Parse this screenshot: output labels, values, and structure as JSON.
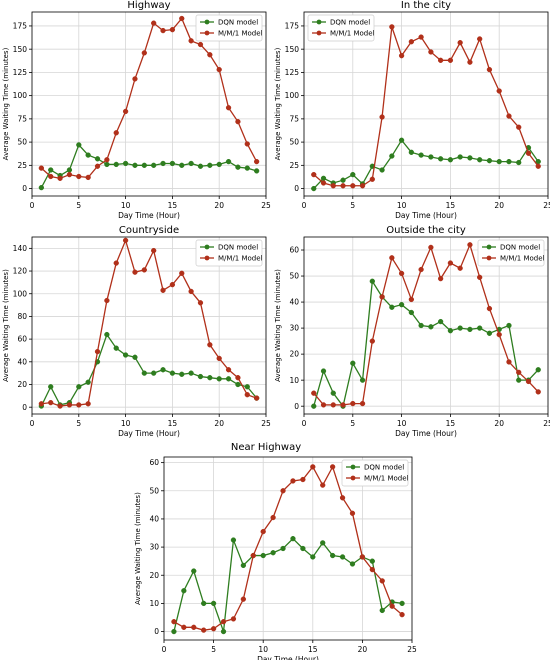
{
  "colors": {
    "dqn": "#2e7d1f",
    "mm1": "#b1301a",
    "grid": "#d6d6d6",
    "axis": "#000000"
  },
  "chart_data": [
    {
      "type": "line",
      "title": "Highway",
      "xlabel": "Day Time (Hour)",
      "ylabel": "Average Waiting Time (minutes)",
      "xlim": [
        0,
        25
      ],
      "ylim": [
        -8,
        190
      ],
      "xticks": [
        0,
        5,
        10,
        15,
        20,
        25
      ],
      "yticks": [
        0,
        25,
        50,
        75,
        100,
        125,
        150,
        175
      ],
      "grid": true,
      "legend": "top-right",
      "x": [
        1,
        2,
        3,
        4,
        5,
        6,
        7,
        8,
        9,
        10,
        11,
        12,
        13,
        14,
        15,
        16,
        17,
        18,
        19,
        20,
        21,
        22,
        23,
        24
      ],
      "series": [
        {
          "name": "DQN model",
          "values": [
            1,
            20,
            14,
            20,
            47,
            36,
            32,
            26,
            26,
            27,
            25,
            25,
            25,
            27,
            27,
            25,
            27,
            24,
            25,
            26,
            29,
            23,
            22,
            19
          ]
        },
        {
          "name": "M/M/1 Model",
          "values": [
            22,
            13,
            11,
            15,
            13,
            12,
            24,
            31,
            60,
            83,
            118,
            146,
            178,
            170,
            171,
            183,
            159,
            155,
            144,
            128,
            87,
            72,
            48,
            29
          ]
        }
      ]
    },
    {
      "type": "line",
      "title": "In the city",
      "xlabel": "Day Time (Hour)",
      "ylabel": "Average Waiting Time (minutes)",
      "xlim": [
        0,
        25
      ],
      "ylim": [
        -8,
        190
      ],
      "xticks": [
        0,
        5,
        10,
        15,
        20,
        25
      ],
      "yticks": [
        0,
        25,
        50,
        75,
        100,
        125,
        150,
        175
      ],
      "grid": true,
      "legend": "top-left",
      "x": [
        1,
        2,
        3,
        4,
        5,
        6,
        7,
        8,
        9,
        10,
        11,
        12,
        13,
        14,
        15,
        16,
        17,
        18,
        19,
        20,
        21,
        22,
        23,
        24
      ],
      "series": [
        {
          "name": "DQN model",
          "values": [
            0,
            11,
            6,
            9,
            15,
            5,
            24,
            20,
            35,
            52,
            39,
            36,
            34,
            32,
            31,
            34,
            33,
            31,
            30,
            29,
            29,
            28,
            44,
            29
          ]
        },
        {
          "name": "M/M/1 Model",
          "values": [
            15,
            6,
            3,
            3,
            3,
            3,
            10,
            77,
            174,
            143,
            158,
            163,
            147,
            138,
            138,
            157,
            136,
            161,
            128,
            105,
            78,
            66,
            38,
            24
          ]
        }
      ]
    },
    {
      "type": "line",
      "title": "Countryside",
      "xlabel": "Day Time (Hour)",
      "ylabel": "Average Waiting Time (minutes)",
      "xlim": [
        0,
        25
      ],
      "ylim": [
        -6,
        150
      ],
      "xticks": [
        0,
        5,
        10,
        15,
        20,
        25
      ],
      "yticks": [
        0,
        20,
        40,
        60,
        80,
        100,
        120,
        140
      ],
      "grid": true,
      "legend": "top-right",
      "x": [
        1,
        2,
        3,
        4,
        5,
        6,
        7,
        8,
        9,
        10,
        11,
        12,
        13,
        14,
        15,
        16,
        17,
        18,
        19,
        20,
        21,
        22,
        23,
        24
      ],
      "series": [
        {
          "name": "DQN model",
          "values": [
            1,
            18,
            2,
            4,
            18,
            22,
            40,
            64,
            52,
            46,
            44,
            30,
            30,
            33,
            30,
            29,
            30,
            27,
            26,
            25,
            25,
            20,
            18,
            8
          ]
        },
        {
          "name": "M/M/1 Model",
          "values": [
            3,
            4,
            1,
            2,
            2,
            3,
            49,
            94,
            127,
            147,
            119,
            121,
            138,
            103,
            108,
            118,
            102,
            92,
            55,
            43,
            33,
            26,
            11,
            8
          ]
        }
      ]
    },
    {
      "type": "line",
      "title": "Outside the city",
      "xlabel": "Day Time (Hour)",
      "ylabel": "Average Waiting Time (minutes)",
      "xlim": [
        0,
        25
      ],
      "ylim": [
        -3,
        65
      ],
      "xticks": [
        0,
        5,
        10,
        15,
        20,
        25
      ],
      "yticks": [
        0,
        10,
        20,
        30,
        40,
        50,
        60
      ],
      "grid": true,
      "legend": "top-right",
      "x": [
        1,
        2,
        3,
        4,
        5,
        6,
        7,
        8,
        9,
        10,
        11,
        12,
        13,
        14,
        15,
        16,
        17,
        18,
        19,
        20,
        21,
        22,
        23,
        24
      ],
      "series": [
        {
          "name": "DQN model",
          "values": [
            0,
            13.5,
            5,
            0,
            16.5,
            10,
            48,
            42,
            38,
            39,
            36,
            31,
            30.5,
            32.5,
            29,
            30,
            29.5,
            30,
            28,
            29.5,
            31,
            10,
            10,
            14
          ]
        },
        {
          "name": "M/M/1 Model",
          "values": [
            5,
            0.5,
            0.5,
            0.5,
            1,
            1,
            25,
            42,
            57,
            51,
            41,
            52.5,
            61,
            49,
            55,
            53,
            62,
            49.5,
            37.5,
            27.5,
            17,
            13,
            9.5,
            5.5
          ]
        }
      ]
    },
    {
      "type": "line",
      "title": "",
      "xlabel": "Day Time (Hour)",
      "ylabel": "Average Waiting Time (minutes)",
      "xlim": [
        0,
        25
      ],
      "ylim": [
        -3,
        62
      ],
      "xticks": [
        0,
        5,
        10,
        15,
        20,
        25
      ],
      "yticks": [
        0,
        10,
        20,
        30,
        40,
        50,
        60
      ],
      "grid": true,
      "legend": "top-right",
      "x": [
        1,
        2,
        3,
        4,
        5,
        6,
        7,
        8,
        9,
        10,
        11,
        12,
        13,
        14,
        15,
        16,
        17,
        18,
        19,
        20,
        21,
        22,
        23,
        24
      ],
      "series": [
        {
          "name": "DQN model",
          "values": [
            0,
            14.5,
            21.5,
            10,
            10,
            0,
            32.5,
            23.5,
            27,
            27,
            28,
            29.5,
            33,
            29.5,
            26.5,
            31.5,
            27,
            26.5,
            24,
            26.5,
            25,
            7.5,
            10.5,
            10
          ]
        },
        {
          "name": "M/M/1 Model",
          "values": [
            3.5,
            1.5,
            1.5,
            0.5,
            1,
            3.5,
            4.5,
            11.5,
            27,
            35.5,
            40.5,
            50,
            53.5,
            54,
            58.5,
            52,
            58.5,
            47.5,
            42,
            26.5,
            22,
            18,
            9,
            6
          ]
        }
      ]
    }
  ],
  "panel_label": "Near Highway"
}
